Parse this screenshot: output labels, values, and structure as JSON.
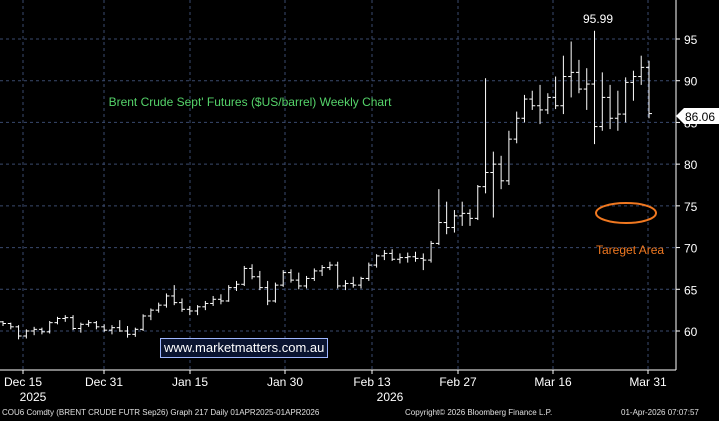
{
  "chart_data": {
    "type": "ohlc",
    "title": "Brent Crude Sept' Futures ($US/barrel) Weekly Chart",
    "ylim": [
      55,
      99
    ],
    "yticks": [
      60,
      65,
      70,
      75,
      80,
      85,
      90,
      95
    ],
    "grid": true,
    "x_tick_labels": [
      "Dec 15",
      "Dec 31",
      "Jan 15",
      "Jan 30",
      "Feb 13",
      "Feb 27",
      "Mar 16",
      "Mar 31"
    ],
    "x_year_labels": [
      "2025",
      "2026"
    ],
    "last_price_label": "86.06",
    "peak_label": "95.99",
    "series": [
      {
        "values": [
          [
            61.1,
            61.2,
            60.6,
            60.9
          ],
          [
            60.9,
            61.0,
            60.2,
            60.5
          ],
          [
            60.5,
            60.7,
            59.0,
            59.4
          ],
          [
            59.4,
            60.2,
            59.1,
            60.0
          ],
          [
            60.0,
            60.5,
            59.5,
            60.2
          ],
          [
            60.2,
            60.4,
            59.6,
            59.9
          ],
          [
            59.9,
            61.2,
            59.7,
            61.0
          ],
          [
            61.0,
            61.7,
            60.8,
            61.5
          ],
          [
            61.5,
            61.9,
            61.1,
            61.6
          ],
          [
            61.6,
            61.9,
            60.1,
            60.3
          ],
          [
            60.3,
            61.0,
            59.8,
            60.8
          ],
          [
            60.8,
            61.3,
            60.5,
            61.0
          ],
          [
            61.0,
            61.2,
            60.2,
            60.5
          ],
          [
            60.5,
            60.8,
            59.9,
            60.1
          ],
          [
            60.1,
            60.7,
            59.6,
            60.4
          ],
          [
            60.4,
            61.3,
            59.9,
            60.0
          ],
          [
            60.0,
            60.6,
            59.2,
            59.6
          ],
          [
            59.6,
            60.4,
            59.3,
            60.2
          ],
          [
            60.2,
            62.0,
            60.0,
            61.8
          ],
          [
            61.8,
            62.7,
            61.3,
            62.5
          ],
          [
            62.5,
            63.4,
            62.2,
            63.1
          ],
          [
            63.1,
            64.5,
            62.8,
            64.2
          ],
          [
            64.2,
            65.5,
            63.1,
            63.4
          ],
          [
            63.4,
            63.9,
            62.3,
            62.6
          ],
          [
            62.6,
            63.0,
            61.9,
            62.4
          ],
          [
            62.4,
            63.1,
            61.9,
            62.9
          ],
          [
            62.9,
            63.6,
            62.5,
            63.3
          ],
          [
            63.3,
            64.2,
            63.0,
            63.8
          ],
          [
            63.8,
            64.4,
            63.2,
            63.6
          ],
          [
            63.6,
            65.5,
            63.5,
            65.2
          ],
          [
            65.2,
            66.0,
            64.8,
            65.6
          ],
          [
            65.6,
            67.8,
            65.4,
            67.5
          ],
          [
            67.5,
            68.0,
            66.2,
            66.5
          ],
          [
            66.5,
            67.2,
            64.9,
            65.2
          ],
          [
            65.2,
            66.0,
            63.1,
            63.6
          ],
          [
            63.6,
            65.8,
            63.4,
            65.5
          ],
          [
            65.5,
            67.3,
            65.3,
            67.0
          ],
          [
            67.0,
            67.4,
            65.8,
            66.1
          ],
          [
            66.1,
            67.0,
            65.0,
            65.4
          ],
          [
            65.4,
            66.6,
            65.1,
            66.3
          ],
          [
            66.3,
            67.5,
            66.0,
            67.2
          ],
          [
            67.2,
            67.9,
            66.6,
            67.6
          ],
          [
            67.6,
            68.3,
            67.3,
            67.9
          ],
          [
            67.9,
            68.3,
            65.1,
            65.4
          ],
          [
            65.4,
            66.1,
            64.9,
            65.7
          ],
          [
            65.7,
            66.5,
            65.2,
            65.5
          ],
          [
            65.5,
            66.5,
            65.1,
            66.3
          ],
          [
            66.3,
            68.2,
            66.0,
            67.9
          ],
          [
            67.9,
            69.2,
            67.6,
            69.0
          ],
          [
            69.0,
            69.7,
            68.5,
            69.3
          ],
          [
            69.3,
            69.8,
            68.4,
            68.6
          ],
          [
            68.6,
            69.3,
            68.1,
            68.8
          ],
          [
            68.8,
            69.4,
            68.2,
            68.9
          ],
          [
            68.9,
            69.5,
            68.3,
            68.7
          ],
          [
            68.7,
            69.3,
            67.3,
            68.5
          ],
          [
            68.5,
            70.8,
            68.2,
            70.5
          ],
          [
            70.5,
            77.0,
            70.3,
            73.0
          ],
          [
            73.0,
            75.5,
            71.6,
            72.4
          ],
          [
            72.4,
            74.5,
            71.8,
            73.8
          ],
          [
            73.8,
            75.5,
            72.6,
            74.1
          ],
          [
            74.1,
            74.6,
            72.6,
            73.5
          ],
          [
            73.5,
            77.5,
            73.3,
            77.3
          ],
          [
            77.3,
            90.3,
            76.5,
            79.0
          ],
          [
            79.0,
            81.5,
            73.6,
            80.0
          ],
          [
            80.0,
            81.0,
            77.0,
            78.0
          ],
          [
            78.0,
            84.0,
            77.5,
            83.0
          ],
          [
            83.0,
            86.3,
            82.5,
            85.5
          ],
          [
            85.5,
            88.3,
            85.0,
            87.8
          ],
          [
            87.8,
            88.8,
            86.5,
            87.0
          ],
          [
            87.0,
            89.5,
            84.8,
            86.5
          ],
          [
            86.5,
            88.5,
            86.0,
            88.0
          ],
          [
            88.0,
            90.5,
            86.6,
            87.0
          ],
          [
            87.0,
            93.0,
            86.0,
            90.5
          ],
          [
            90.5,
            94.7,
            88.0,
            91.0
          ],
          [
            91.0,
            92.5,
            88.5,
            89.0
          ],
          [
            89.0,
            91.5,
            86.5,
            89.6
          ],
          [
            89.6,
            95.99,
            82.4,
            84.5
          ],
          [
            84.5,
            91.0,
            84.0,
            88.0
          ],
          [
            88.0,
            89.5,
            84.2,
            85.5
          ],
          [
            85.5,
            88.8,
            84.0,
            86.0
          ],
          [
            86.0,
            90.4,
            85.0,
            89.8
          ],
          [
            89.8,
            91.2,
            87.6,
            90.5
          ],
          [
            90.5,
            93.0,
            89.5,
            91.6
          ],
          [
            91.6,
            92.4,
            85.5,
            86.06
          ]
        ]
      }
    ],
    "annotations": {
      "target_label": "Tareget Area",
      "watermark": "www.marketmatters.com.au"
    }
  },
  "colors": {
    "background": "#000000",
    "grid": "#3a4a6e",
    "bars": "#ffffff",
    "title": "#55d36a",
    "target": "#f07820",
    "axis_text": "#ffffff"
  },
  "footer": {
    "left": "COU6 Comdty (BRENT CRUDE FUTR  Sep26) Graph 217 Daily 01APR2025-01APR2026",
    "center": "Copyright© 2026 Bloomberg Finance L.P.",
    "right": "01-Apr-2026 07:07:57"
  }
}
